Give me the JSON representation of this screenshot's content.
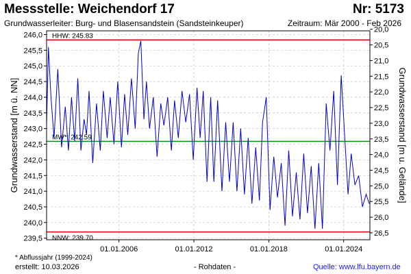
{
  "header": {
    "title": "Messstelle: Weichendorf 17",
    "number": "Nr: 5173",
    "aquifer": "Grundwasserleiter:  Burg- und Blasensandstein (Sandsteinkeuper)",
    "period": "Zeitraum: Mär 2000 - Feb 2026"
  },
  "footer": {
    "footnote": "* Abflussjahr (1999-2024)",
    "created": "erstellt:  10.03.2026",
    "raw": "- Rohdaten -",
    "source": "Quelle: www.lfu.bayern.de"
  },
  "colors": {
    "series": "#0000cc",
    "hhw": "#e00000",
    "nnw": "#e00000",
    "mw": "#009900",
    "grid": "#c8c8c8"
  },
  "chart_data": {
    "type": "line",
    "title": "",
    "ylabel": "Grundwasserstand [m ü. NN]",
    "y2label": "Grundwasserstand [m u. Gelände]",
    "xlim": [
      2000.2,
      2026.1
    ],
    "ylim": [
      239.45,
      246.12
    ],
    "y2lim": [
      26.72,
      20.05
    ],
    "yticks": [
      "246,0",
      "245,5",
      "245,0",
      "244,5",
      "244,0",
      "243,5",
      "243,0",
      "242,5",
      "242,0",
      "241,5",
      "241,0",
      "240,5",
      "240,0",
      "239,5"
    ],
    "y2ticks": [
      "20,0",
      "20,5",
      "21,0",
      "21,5",
      "22,0",
      "22,5",
      "23,0",
      "23,5",
      "24,0",
      "24,5",
      "25,0",
      "25,5",
      "26,0",
      "26,5"
    ],
    "xticks": [
      {
        "label": "01.01.2006",
        "value": 2006.0
      },
      {
        "label": "01.01.2012",
        "value": 2012.0
      },
      {
        "label": "01.01.2018",
        "value": 2018.0
      },
      {
        "label": "01.01.2024",
        "value": 2024.0
      }
    ],
    "reference_lines": [
      {
        "label": "HHW: 245.83",
        "value": 245.83
      },
      {
        "label": "MW*: 242.59",
        "value": 242.59
      },
      {
        "label": "NNW: 239.70",
        "value": 239.7
      }
    ],
    "grid": true,
    "series": [
      {
        "x": [
          2000.2,
          2000.35,
          2000.55,
          2000.8,
          2001.1,
          2001.4,
          2001.7,
          2001.95,
          2002.2,
          2002.45,
          2002.7,
          2002.95,
          2003.2,
          2003.4,
          2003.6,
          2003.9,
          2004.2,
          2004.5,
          2004.75,
          2005.05,
          2005.3,
          2005.6,
          2005.9,
          2006.2,
          2006.45,
          2006.7,
          2007.0,
          2007.3,
          2007.55,
          2007.75,
          2008.0,
          2008.2,
          2008.45,
          2008.75,
          2009.05,
          2009.35,
          2009.6,
          2009.9,
          2010.2,
          2010.45,
          2010.75,
          2011.05,
          2011.35,
          2011.65,
          2011.95,
          2012.25,
          2012.5,
          2012.75,
          2013.05,
          2013.35,
          2013.6,
          2013.9,
          2014.25,
          2014.55,
          2014.85,
          2015.15,
          2015.45,
          2015.75,
          2016.05,
          2016.35,
          2016.65,
          2016.95,
          2017.25,
          2017.5,
          2017.8,
          2018.1,
          2018.4,
          2018.7,
          2019.0,
          2019.3,
          2019.6,
          2019.9,
          2020.2,
          2020.5,
          2020.8,
          2021.1,
          2021.4,
          2021.7,
          2022.0,
          2022.3,
          2022.6,
          2022.9,
          2023.2,
          2023.5,
          2023.8,
          2024.1,
          2024.35,
          2024.6,
          2024.9,
          2025.2,
          2025.5,
          2025.8,
          2026.05
        ],
        "y": [
          243.1,
          245.6,
          244.0,
          242.7,
          244.9,
          242.4,
          243.7,
          242.3,
          244.0,
          242.6,
          244.6,
          242.3,
          243.3,
          242.8,
          244.2,
          241.9,
          243.8,
          242.3,
          244.2,
          242.7,
          244.0,
          242.5,
          244.5,
          242.4,
          244.1,
          242.8,
          244.6,
          243.0,
          245.4,
          245.8,
          243.3,
          244.5,
          243.0,
          244.0,
          242.1,
          243.8,
          243.1,
          244.0,
          242.3,
          243.9,
          242.7,
          244.2,
          243.2,
          244.1,
          242.0,
          244.3,
          242.7,
          244.2,
          241.3,
          244.0,
          241.3,
          243.9,
          241.0,
          243.2,
          241.3,
          243.2,
          241.0,
          243.0,
          240.9,
          242.7,
          240.6,
          242.4,
          240.7,
          243.2,
          244.0,
          240.4,
          242.1,
          240.8,
          241.9,
          239.9,
          242.3,
          240.2,
          241.6,
          240.1,
          242.2,
          240.3,
          241.8,
          239.8,
          241.9,
          239.8,
          243.8,
          242.3,
          244.2,
          241.2,
          244.7,
          242.6,
          240.9,
          242.2,
          241.2,
          241.5,
          240.5,
          240.9,
          240.6
        ]
      }
    ]
  }
}
